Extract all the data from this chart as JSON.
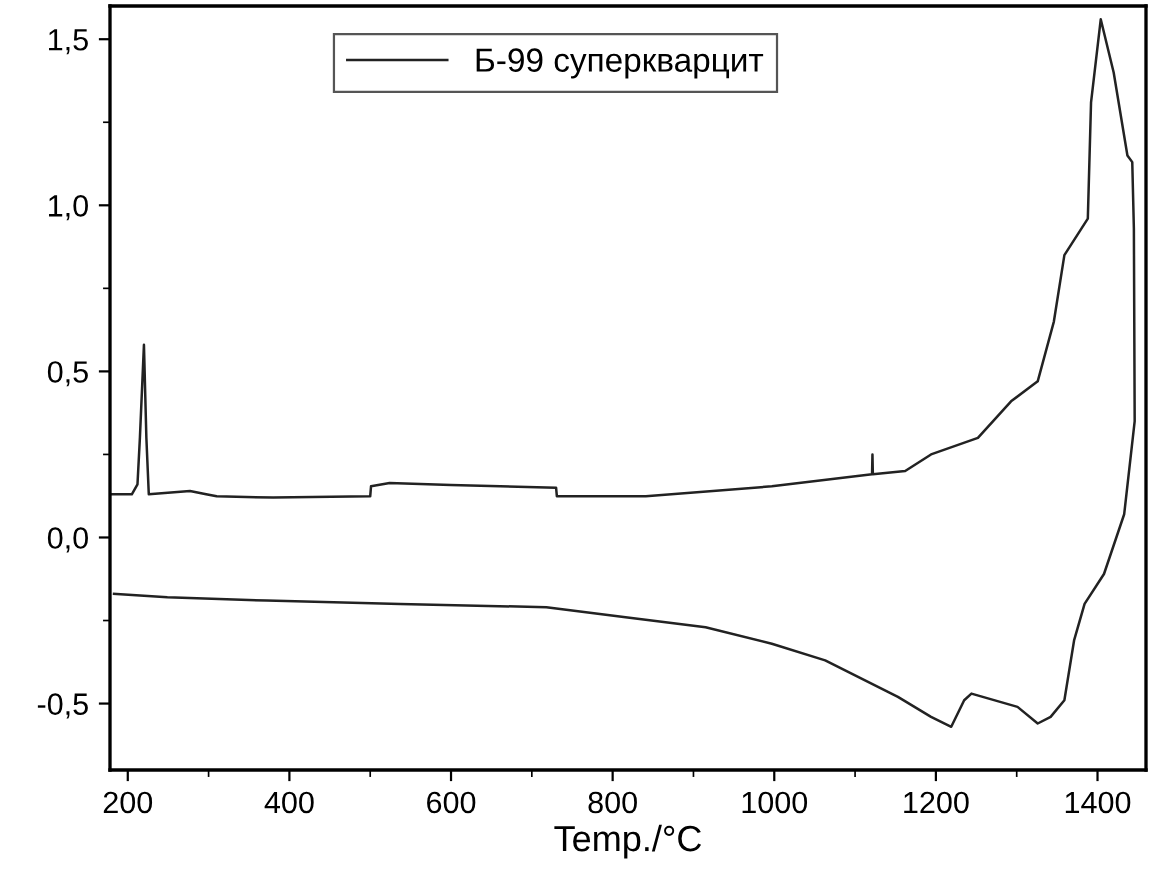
{
  "chart_data": {
    "type": "line",
    "xlabel": "Temp./°C",
    "legend": "top",
    "grid": false,
    "xlim": [
      178,
      1460
    ],
    "ylim": [
      -0.7,
      1.6
    ],
    "xticks": [
      200,
      {
        "value": 300,
        "label": null
      },
      400,
      {
        "value": 500,
        "label": null
      },
      600,
      {
        "value": 700,
        "label": null
      },
      800,
      {
        "value": 900,
        "label": null
      },
      1000,
      {
        "value": 1100,
        "label": null
      },
      1200,
      {
        "value": 1300,
        "label": null
      },
      1400
    ],
    "yticks": [
      {
        "value": -0.5,
        "label": "-0,5"
      },
      {
        "value": -0.25,
        "label": null
      },
      {
        "value": 0,
        "label": "0,0"
      },
      {
        "value": 0.25,
        "label": null
      },
      {
        "value": 0.5,
        "label": "0,5"
      },
      {
        "value": 0.75,
        "label": null
      },
      {
        "value": 1.0,
        "label": "1,0"
      },
      {
        "value": 1.25,
        "label": null
      },
      {
        "value": 1.5,
        "label": "1,5"
      }
    ],
    "series": [
      {
        "name": "Б-99 суперкварцит",
        "color": "#222222",
        "x": [
          180,
          205,
          212,
          215,
          220,
          223,
          226,
          277,
          297,
          310,
          380,
          500,
          501,
          524,
          600,
          730,
          731,
          841,
          997,
          1121,
          1121.5,
          1122,
          1162,
          1194,
          1252,
          1293,
          1326,
          1346,
          1359,
          1388,
          1392,
          1404,
          1420,
          1437,
          1443,
          1445,
          1446,
          1433,
          1408,
          1384,
          1371,
          1359,
          1342,
          1326,
          1301,
          1244,
          1235,
          1219,
          1194,
          1153,
          1063,
          997,
          915,
          816,
          718,
          537,
          372,
          249,
          183
        ],
        "values": [
          0.13,
          0.13,
          0.16,
          0.3,
          0.58,
          0.3,
          0.13,
          0.14,
          0.13,
          0.124,
          0.12,
          0.124,
          0.154,
          0.164,
          0.158,
          0.15,
          0.124,
          0.124,
          0.154,
          0.19,
          0.25,
          0.19,
          0.2,
          0.25,
          0.3,
          0.41,
          0.47,
          0.65,
          0.85,
          0.96,
          1.31,
          1.56,
          1.4,
          1.15,
          1.13,
          0.93,
          0.35,
          0.07,
          -0.11,
          -0.2,
          -0.31,
          -0.49,
          -0.54,
          -0.56,
          -0.51,
          -0.47,
          -0.49,
          -0.57,
          -0.54,
          -0.48,
          -0.37,
          -0.32,
          -0.27,
          -0.24,
          -0.21,
          -0.2,
          -0.19,
          -0.18,
          -0.17
        ]
      }
    ]
  }
}
